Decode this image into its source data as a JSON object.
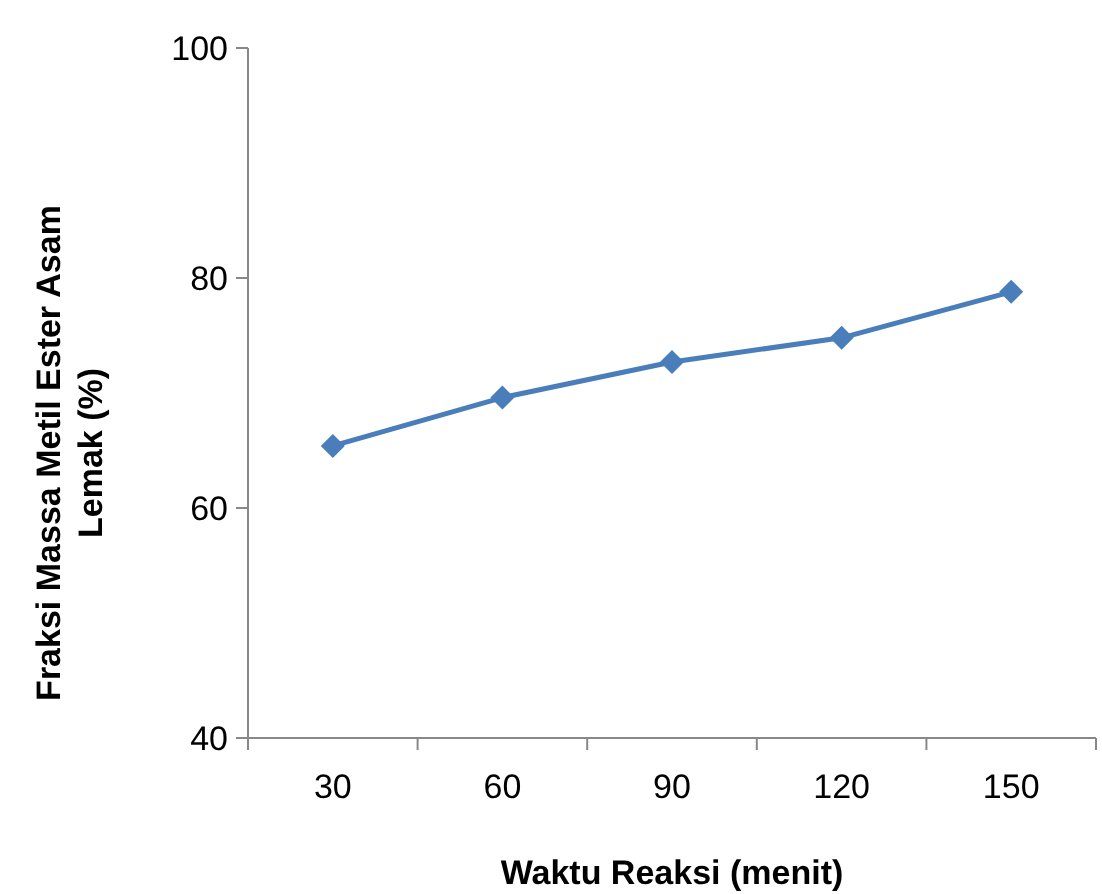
{
  "chart_data": {
    "type": "line",
    "xlabel": "Waktu Reaksi (menit)",
    "ylabel": "Fraksi Massa Metil Ester Asam\nLemak (%)",
    "categories": [
      "30",
      "60",
      "90",
      "120",
      "150"
    ],
    "series": [
      {
        "color": "#4a7ebb",
        "values": [
          65.4,
          69.6,
          72.7,
          74.8,
          78.8
        ]
      }
    ],
    "ylim": [
      40,
      100
    ],
    "yticks": [
      40,
      60,
      80,
      100
    ],
    "grid": false,
    "marker": "diamond",
    "line_style": "solid"
  }
}
